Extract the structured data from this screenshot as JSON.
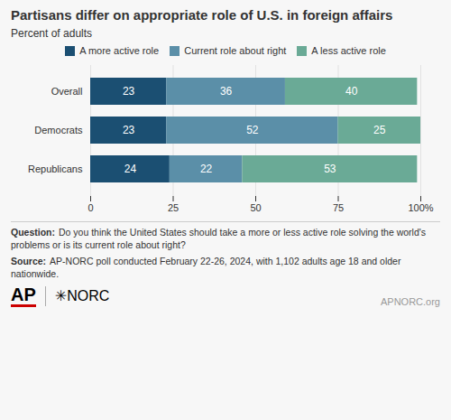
{
  "chart_data": {
    "type": "bar",
    "orientation": "horizontal",
    "stacked": true,
    "title": "Partisans differ on appropriate role of U.S. in foreign affairs",
    "subtitle": "Percent of adults",
    "categories": [
      "Overall",
      "Democrats",
      "Republicans"
    ],
    "series": [
      {
        "name": "A more active role",
        "color": "#1b4f72",
        "values": [
          23,
          23,
          24
        ]
      },
      {
        "name": "Current role about right",
        "color": "#5b8fa8",
        "values": [
          36,
          52,
          22
        ]
      },
      {
        "name": "A less active role",
        "color": "#6aaa96",
        "values": [
          40,
          25,
          53
        ]
      }
    ],
    "xlim": [
      0,
      100
    ],
    "xticks": [
      0,
      25,
      50,
      75,
      {
        "value": 100,
        "label": "100%"
      }
    ],
    "grid": true,
    "data_labels": true,
    "notes": [
      {
        "label": "Question:",
        "text": "Do you think the United States should take a more or less active role solving the world's problems or is its current role about right?"
      },
      {
        "label": "Source:",
        "text": "AP-NORC poll conducted February 22-26, 2024, with 1,102 adults age 18 and older nationwide."
      }
    ],
    "annotations": [
      "AP",
      "✳NORC",
      "APNORC.org"
    ]
  }
}
